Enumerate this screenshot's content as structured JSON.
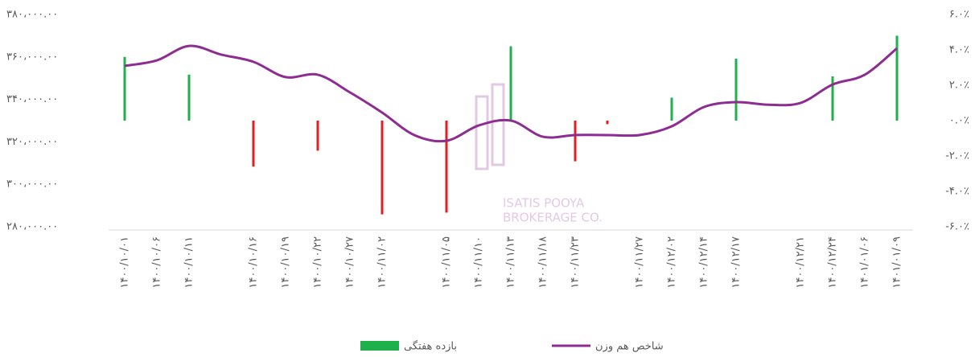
{
  "chart_data": {
    "type": "bar-line",
    "categories": [
      "۱۴۰۰/۱۰/۰۱",
      "۱۴۰۰/۱۰/۰۶",
      "۱۴۰۰/۱۰/۱۱",
      null,
      "۱۴۰۰/۱۰/۱۶",
      "۱۴۰۰/۱۰/۱۹",
      "۱۴۰۰/۱۰/۲۲",
      "۱۴۰۰/۱۰/۲۷",
      "۱۴۰۰/۱۱/۰۲",
      null,
      "۱۴۰۰/۱۱/۰۵",
      "۱۴۰۰/۱۱/۱۰",
      "۱۴۰۰/۱۱/۱۳",
      "۱۴۰۰/۱۱/۱۸",
      "۱۴۰۰/۱۱/۲۳",
      null,
      "۱۴۰۰/۱۱/۲۷",
      "۱۴۰۰/۱۲/۰۲",
      "۱۴۰۰/۱۲/۱۴",
      "۱۴۰۰/۱۲/۱۷",
      null,
      "۱۴۰۰/۱۲/۲۱",
      "۱۴۰۰/۱۲/۲۴",
      "۱۴۰۱/۰۱/۰۶",
      "۱۴۰۱/۰۱/۰۹"
    ],
    "series": [
      {
        "name": "شاخص هم وزن",
        "type": "line",
        "color": "#8e2d91",
        "values": [
          355800,
          358400,
          365200,
          361100,
          357700,
          350500,
          351600,
          343300,
          333800,
          323200,
          320500,
          327700,
          330000,
          322400,
          323200,
          323200,
          323200,
          327300,
          336400,
          338700,
          337500,
          338300,
          347000,
          351600,
          364100
        ]
      },
      {
        "name": "بازده هفتگی",
        "type": "bar",
        "axis": "y2",
        "color": "#1db04b",
        "negative_color": "#e31e24",
        "values": [
          3.6,
          null,
          2.6,
          null,
          -2.6,
          null,
          -1.7,
          null,
          -5.3,
          null,
          -5.2,
          null,
          4.2,
          null,
          -2.3,
          -0.2,
          null,
          1.3,
          null,
          3.5,
          null,
          null,
          2.5,
          null,
          4.8
        ]
      }
    ],
    "ylim": [
      280000,
      380000
    ],
    "yticks": [
      {
        "value": 280000,
        "label": "۲۸۰،۰۰۰.۰۰"
      },
      {
        "value": 300000,
        "label": "۳۰۰،۰۰۰.۰۰"
      },
      {
        "value": 320000,
        "label": "۳۲۰،۰۰۰.۰۰"
      },
      {
        "value": 340000,
        "label": "۳۴۰،۰۰۰.۰۰"
      },
      {
        "value": 360000,
        "label": "۳۶۰،۰۰۰.۰۰"
      },
      {
        "value": 380000,
        "label": "۳۸۰،۰۰۰.۰۰"
      }
    ],
    "y2lim": [
      -6,
      6
    ],
    "y2ticks": [
      {
        "value": -6,
        "label": "-۶.۰٪"
      },
      {
        "value": -4,
        "label": "-۴.۰٪"
      },
      {
        "value": -2,
        "label": "-۲.۰٪"
      },
      {
        "value": 0,
        "label": "۰.۰٪"
      },
      {
        "value": 2,
        "label": "۲.۰٪"
      },
      {
        "value": 4,
        "label": "۴.۰٪"
      },
      {
        "value": 6,
        "label": "۶.۰٪"
      }
    ],
    "annotations": [
      "ISATIS POOYA",
      "BROKERAGE CO."
    ]
  }
}
